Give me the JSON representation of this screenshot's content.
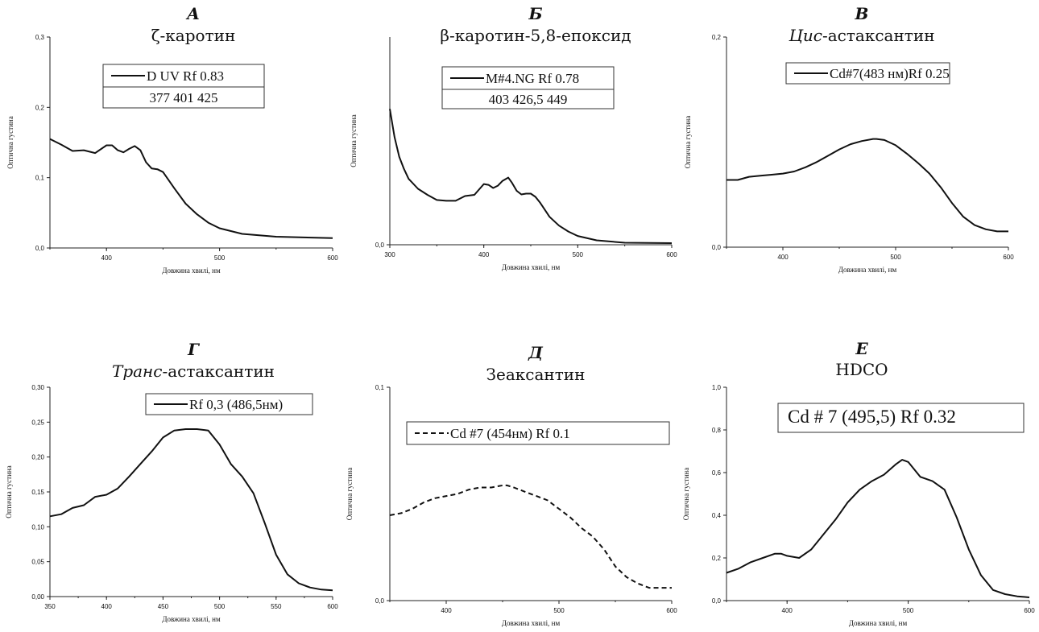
{
  "chart_data": [
    {
      "type": "line",
      "letter": "А",
      "title": "ζ-каротин",
      "title_italic": "",
      "xlabel": "Довжина хвилі, нм",
      "ylabel": "Оптична густина",
      "xlim": [
        350,
        600
      ],
      "ylim": [
        0,
        0.3
      ],
      "x_ticks": [
        400,
        500,
        600
      ],
      "y_ticks": [
        0.0,
        0.1,
        0.2,
        0.3
      ],
      "y_tick_labels": [
        "0,0",
        "0,1",
        "0,2",
        "0,3"
      ],
      "legend": {
        "label": "D UV Rf 0.83",
        "extra": "377   401   425",
        "line": "solid",
        "size": "normal",
        "boxed_extra": true
      },
      "series": [
        {
          "line": "solid",
          "x": [
            350,
            360,
            370,
            380,
            390,
            400,
            405,
            410,
            415,
            420,
            425,
            430,
            435,
            440,
            445,
            450,
            460,
            470,
            480,
            490,
            500,
            520,
            550,
            600
          ],
          "y": [
            0.155,
            0.147,
            0.138,
            0.139,
            0.135,
            0.146,
            0.146,
            0.139,
            0.136,
            0.141,
            0.145,
            0.139,
            0.122,
            0.113,
            0.112,
            0.108,
            0.085,
            0.063,
            0.048,
            0.036,
            0.028,
            0.02,
            0.016,
            0.014
          ]
        }
      ]
    },
    {
      "type": "line",
      "letter": "Б",
      "title": "β-каротин-5,8-епоксид",
      "title_italic": "",
      "xlabel": "Довжина хвилі, нм",
      "ylabel": "Оптична густина",
      "xlim": [
        300,
        600
      ],
      "ylim": [
        0,
        0.52
      ],
      "x_ticks": [
        300,
        400,
        500,
        600
      ],
      "y_ticks": [
        0.0
      ],
      "y_tick_labels": [
        "0,0"
      ],
      "legend": {
        "label": "M#4.NG Rf 0.78",
        "extra": "403   426,5   449",
        "line": "solid",
        "size": "normal",
        "boxed_extra": true
      },
      "series": [
        {
          "line": "solid",
          "x": [
            300,
            305,
            310,
            315,
            320,
            330,
            340,
            350,
            360,
            370,
            380,
            390,
            400,
            405,
            410,
            415,
            420,
            426,
            430,
            435,
            440,
            445,
            450,
            455,
            460,
            470,
            480,
            490,
            500,
            520,
            550,
            600
          ],
          "y": [
            0.34,
            0.27,
            0.22,
            0.19,
            0.165,
            0.14,
            0.125,
            0.112,
            0.11,
            0.11,
            0.122,
            0.125,
            0.152,
            0.15,
            0.142,
            0.148,
            0.16,
            0.168,
            0.155,
            0.135,
            0.126,
            0.128,
            0.128,
            0.12,
            0.105,
            0.07,
            0.048,
            0.033,
            0.022,
            0.011,
            0.005,
            0.004
          ]
        }
      ]
    },
    {
      "type": "line",
      "letter": "В",
      "title": "-астаксантин",
      "title_italic": "Цис",
      "xlabel": "Довжина хвилі, нм",
      "ylabel": "Оптична густина",
      "xlim": [
        350,
        600
      ],
      "ylim": [
        0,
        0.2
      ],
      "x_ticks": [
        400,
        500,
        600
      ],
      "y_ticks": [
        0.0,
        0.2
      ],
      "y_tick_labels": [
        "0,0",
        "0,2"
      ],
      "legend": {
        "label": "Cd#7(483 нм)Rf 0.25",
        "extra": "",
        "line": "solid",
        "size": "normal",
        "boxed_extra": false
      },
      "series": [
        {
          "line": "solid",
          "x": [
            350,
            360,
            370,
            380,
            390,
            400,
            410,
            420,
            430,
            440,
            450,
            460,
            470,
            480,
            483,
            490,
            500,
            510,
            520,
            530,
            540,
            550,
            560,
            570,
            580,
            590,
            600
          ],
          "y": [
            0.064,
            0.064,
            0.067,
            0.068,
            0.069,
            0.07,
            0.072,
            0.076,
            0.081,
            0.087,
            0.093,
            0.098,
            0.101,
            0.103,
            0.103,
            0.102,
            0.097,
            0.089,
            0.08,
            0.07,
            0.057,
            0.042,
            0.029,
            0.021,
            0.017,
            0.015,
            0.015
          ]
        }
      ]
    },
    {
      "type": "line",
      "letter": "Г",
      "title": "-астаксантин",
      "title_italic": "Транс",
      "xlabel": "Довжина хвилі, нм",
      "ylabel": "Оптична густина",
      "xlim": [
        350,
        600
      ],
      "ylim": [
        0,
        0.3
      ],
      "x_ticks": [
        350,
        400,
        450,
        500,
        550,
        600
      ],
      "y_ticks": [
        0.0,
        0.05,
        0.1,
        0.15,
        0.2,
        0.25,
        0.3
      ],
      "y_tick_labels": [
        "0,00",
        "0,05",
        "0,10",
        "0,15",
        "0,20",
        "0,25",
        "0,30"
      ],
      "legend": {
        "label": "Rf 0,3 (486,5нм)",
        "extra": "",
        "line": "solid",
        "size": "normal",
        "boxed_extra": false
      },
      "series": [
        {
          "line": "solid",
          "x": [
            350,
            360,
            370,
            380,
            390,
            400,
            410,
            420,
            430,
            440,
            450,
            460,
            470,
            480,
            490,
            500,
            510,
            520,
            530,
            540,
            550,
            560,
            570,
            580,
            590,
            600
          ],
          "y": [
            0.115,
            0.118,
            0.127,
            0.131,
            0.143,
            0.146,
            0.155,
            0.172,
            0.19,
            0.208,
            0.228,
            0.238,
            0.24,
            0.24,
            0.238,
            0.218,
            0.19,
            0.172,
            0.148,
            0.105,
            0.06,
            0.032,
            0.019,
            0.013,
            0.01,
            0.009
          ]
        }
      ]
    },
    {
      "type": "line",
      "letter": "Д",
      "title": "Зеаксантин",
      "title_italic": "",
      "xlabel": "Довжина хвилі, нм",
      "ylabel": "Оптична густина",
      "xlim": [
        350,
        600
      ],
      "ylim": [
        0,
        0.1
      ],
      "x_ticks": [
        400,
        500,
        600
      ],
      "y_ticks": [
        0.0,
        0.1
      ],
      "y_tick_labels": [
        "0,0",
        "0,1"
      ],
      "legend": {
        "label": "Cd #7 (454нм) Rf 0.1",
        "extra": "",
        "line": "dashed",
        "size": "normal",
        "boxed_extra": false
      },
      "series": [
        {
          "line": "dashed",
          "x": [
            350,
            360,
            370,
            380,
            390,
            400,
            410,
            420,
            430,
            440,
            450,
            454,
            460,
            470,
            480,
            490,
            500,
            510,
            520,
            530,
            540,
            550,
            560,
            570,
            580,
            590,
            600
          ],
          "y": [
            0.04,
            0.041,
            0.043,
            0.046,
            0.048,
            0.049,
            0.05,
            0.052,
            0.053,
            0.053,
            0.054,
            0.054,
            0.053,
            0.051,
            0.049,
            0.047,
            0.043,
            0.039,
            0.034,
            0.03,
            0.024,
            0.016,
            0.011,
            0.008,
            0.006,
            0.006,
            0.006
          ]
        }
      ]
    },
    {
      "type": "line",
      "letter": "Е",
      "title": "HDCO",
      "title_italic": "",
      "xlabel": "Довжина хвилі, нм",
      "ylabel": "Оптична густина",
      "xlim": [
        350,
        600
      ],
      "ylim": [
        0,
        1.0
      ],
      "x_ticks": [
        400,
        500,
        600
      ],
      "y_ticks": [
        0.0,
        0.2,
        0.4,
        0.6,
        0.8,
        1.0
      ],
      "y_tick_labels": [
        "0,0",
        "0,2",
        "0,4",
        "0,6",
        "0,8",
        "1,0"
      ],
      "legend": {
        "label": "Cd # 7 (495,5) Rf 0.32",
        "extra": "",
        "line": "none",
        "size": "large",
        "boxed_extra": false
      },
      "series": [
        {
          "line": "solid",
          "x": [
            350,
            360,
            370,
            380,
            390,
            395,
            400,
            410,
            420,
            430,
            440,
            450,
            460,
            470,
            480,
            490,
            495,
            500,
            510,
            520,
            530,
            540,
            550,
            560,
            570,
            580,
            590,
            600
          ],
          "y": [
            0.13,
            0.15,
            0.18,
            0.2,
            0.22,
            0.22,
            0.21,
            0.2,
            0.24,
            0.31,
            0.38,
            0.46,
            0.52,
            0.56,
            0.59,
            0.64,
            0.66,
            0.65,
            0.58,
            0.56,
            0.52,
            0.39,
            0.24,
            0.12,
            0.05,
            0.03,
            0.02,
            0.015
          ]
        }
      ]
    }
  ]
}
